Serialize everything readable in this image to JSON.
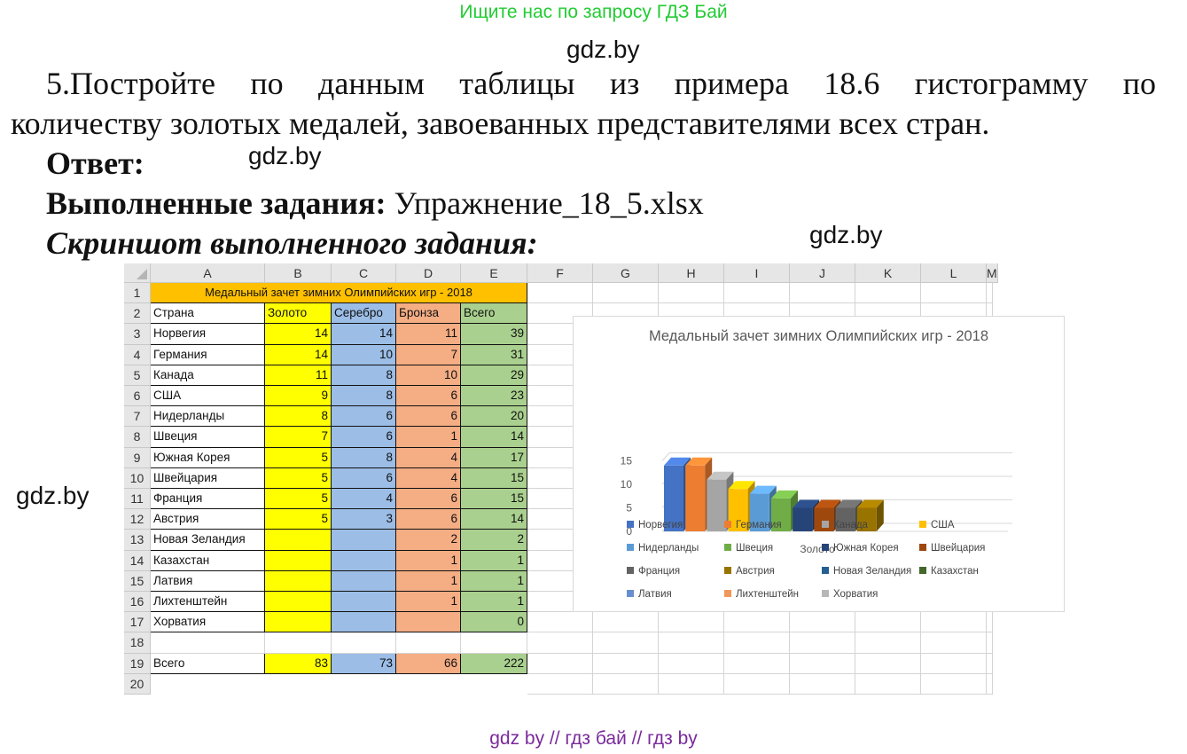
{
  "banner": "Ищите нас по запросу ГДЗ Бай",
  "watermark": "gdz.by",
  "task": {
    "line1": "5.Постройте по данным таблицы из примера 18.6 гистограмму по",
    "line2": "количеству золотых медалей, завоеванных представителями всех стран."
  },
  "answer_label": "Ответ:",
  "done_label": "Выполненные задания:",
  "done_file": "Упражнение_18_5.xlsx",
  "screenshot_label": "Скриншот выполненного задания:",
  "sheet": {
    "columns": [
      "A",
      "B",
      "C",
      "D",
      "E",
      "F",
      "G",
      "H",
      "I",
      "J",
      "K",
      "L",
      "M"
    ],
    "row_numbers": [
      "1",
      "2",
      "3",
      "4",
      "5",
      "6",
      "7",
      "8",
      "9",
      "10",
      "11",
      "12",
      "13",
      "14",
      "15",
      "16",
      "17",
      "18",
      "19",
      "20"
    ],
    "table_title": "Медальный зачет зимних Олимпийских игр - 2018",
    "headers": [
      "Страна",
      "Золото",
      "Серебро",
      "Бронза",
      "Всего"
    ],
    "rows": [
      [
        "Норвегия",
        "14",
        "14",
        "11",
        "39"
      ],
      [
        "Германия",
        "14",
        "10",
        "7",
        "31"
      ],
      [
        "Канада",
        "11",
        "8",
        "10",
        "29"
      ],
      [
        "США",
        "9",
        "8",
        "6",
        "23"
      ],
      [
        "Нидерланды",
        "8",
        "6",
        "6",
        "20"
      ],
      [
        "Швеция",
        "7",
        "6",
        "1",
        "14"
      ],
      [
        "Южная Корея",
        "5",
        "8",
        "4",
        "17"
      ],
      [
        "Швейцария",
        "5",
        "6",
        "4",
        "15"
      ],
      [
        "Франция",
        "5",
        "4",
        "6",
        "15"
      ],
      [
        "Австрия",
        "5",
        "3",
        "6",
        "14"
      ],
      [
        "Новая Зеландия",
        "",
        "",
        "2",
        "2"
      ],
      [
        "Казахстан",
        "",
        "",
        "1",
        "1"
      ],
      [
        "Латвия",
        "",
        "",
        "1",
        "1"
      ],
      [
        "Лихтенштейн",
        "",
        "",
        "1",
        "1"
      ],
      [
        "Хорватия",
        "",
        "",
        "",
        "0"
      ],
      [
        "",
        "",
        "",
        "",
        ""
      ],
      [
        "Всего",
        "83",
        "73",
        "66",
        "222"
      ]
    ],
    "column_colors": {
      "B": "#ffff00",
      "C": "#9bbde6",
      "D": "#f5ad84",
      "E": "#a9d08e",
      "title": "#ffc000"
    }
  },
  "chart_data": {
    "type": "bar",
    "title": "Медальный зачет зимних Олимпийских игр - 2018",
    "categories": [
      "Золото"
    ],
    "y_ticks": [
      "0",
      "5",
      "10",
      "15"
    ],
    "ylim": [
      0,
      15
    ],
    "grid": true,
    "legend_position": "bottom",
    "series": [
      {
        "name": "Норвегия",
        "values": [
          14
        ],
        "color": "#4472c4"
      },
      {
        "name": "Германия",
        "values": [
          14
        ],
        "color": "#ed7d31"
      },
      {
        "name": "Канада",
        "values": [
          11
        ],
        "color": "#a5a5a5"
      },
      {
        "name": "США",
        "values": [
          9
        ],
        "color": "#ffc000"
      },
      {
        "name": "Нидерланды",
        "values": [
          8
        ],
        "color": "#5b9bd5"
      },
      {
        "name": "Швеция",
        "values": [
          7
        ],
        "color": "#70ad47"
      },
      {
        "name": "Южная Корея",
        "values": [
          5
        ],
        "color": "#264478"
      },
      {
        "name": "Швейцария",
        "values": [
          5
        ],
        "color": "#9e480e"
      },
      {
        "name": "Франция",
        "values": [
          5
        ],
        "color": "#636363"
      },
      {
        "name": "Австрия",
        "values": [
          5
        ],
        "color": "#997300"
      },
      {
        "name": "Новая Зеландия",
        "values": [
          0
        ],
        "color": "#255e91"
      },
      {
        "name": "Казахстан",
        "values": [
          0
        ],
        "color": "#43682b"
      },
      {
        "name": "Латвия",
        "values": [
          0
        ],
        "color": "#698ed0"
      },
      {
        "name": "Лихтенштейн",
        "values": [
          0
        ],
        "color": "#f1975a"
      },
      {
        "name": "Хорватия",
        "values": [
          0
        ],
        "color": "#b7b7b7"
      }
    ]
  },
  "footer": "gdz by  //  гдз бай  //  гдз by"
}
